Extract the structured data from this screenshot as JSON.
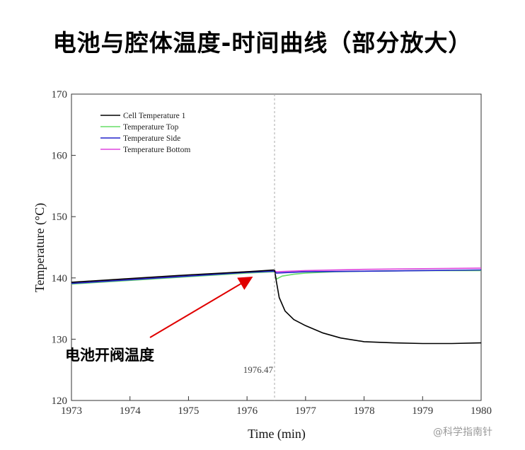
{
  "title": "电池与腔体温度-时间曲线（部分放大）",
  "callout": "电池开阀温度",
  "watermark": "@科学指南针",
  "chart_data": {
    "type": "line",
    "xlabel": "Time (min)",
    "ylabel": "Temperature (°C)",
    "xlim": [
      1973,
      1980
    ],
    "ylim": [
      120,
      170
    ],
    "xticks": [
      "1973",
      "1974",
      "1975",
      "1976",
      "1977",
      "1978",
      "1979",
      "1980"
    ],
    "yticks": [
      "120",
      "130",
      "140",
      "150",
      "160",
      "170"
    ],
    "vline": {
      "x": 1976.47,
      "label": "1976.47",
      "color": "#aaaaaa"
    },
    "grid": false,
    "legend_position": "top-left",
    "series": [
      {
        "name": "Cell Temperature 1",
        "color": "#000000",
        "x": [
          1973,
          1974,
          1975,
          1976,
          1976.47,
          1976.5,
          1976.55,
          1976.65,
          1976.8,
          1977.0,
          1977.3,
          1977.6,
          1978.0,
          1978.5,
          1979.0,
          1979.5,
          1980.0
        ],
        "y": [
          139.3,
          139.9,
          140.5,
          141.0,
          141.3,
          139.5,
          136.8,
          134.6,
          133.2,
          132.2,
          131.0,
          130.2,
          129.6,
          129.4,
          129.3,
          129.3,
          129.4
        ]
      },
      {
        "name": "Temperature Top",
        "color": "#66dd66",
        "x": [
          1973,
          1974,
          1975,
          1976,
          1976.47,
          1976.5,
          1976.6,
          1976.8,
          1977.0,
          1977.5,
          1978.0,
          1979.0,
          1980.0
        ],
        "y": [
          139.0,
          139.6,
          140.2,
          140.8,
          141.0,
          139.8,
          140.3,
          140.6,
          140.8,
          141.0,
          141.1,
          141.2,
          141.2
        ]
      },
      {
        "name": "Temperature Side",
        "color": "#2222cc",
        "x": [
          1973,
          1974,
          1975,
          1976,
          1976.47,
          1976.5,
          1977.0,
          1978.0,
          1979.0,
          1980.0
        ],
        "y": [
          139.1,
          139.7,
          140.3,
          140.9,
          141.1,
          140.8,
          141.0,
          141.1,
          141.2,
          141.3
        ]
      },
      {
        "name": "Temperature Bottom",
        "color": "#dd44dd",
        "x": [
          1973,
          1974,
          1975,
          1976,
          1976.47,
          1976.5,
          1977.0,
          1978.0,
          1979.0,
          1980.0
        ],
        "y": [
          139.2,
          139.8,
          140.4,
          141.0,
          141.2,
          141.0,
          141.2,
          141.4,
          141.5,
          141.6
        ]
      }
    ]
  }
}
